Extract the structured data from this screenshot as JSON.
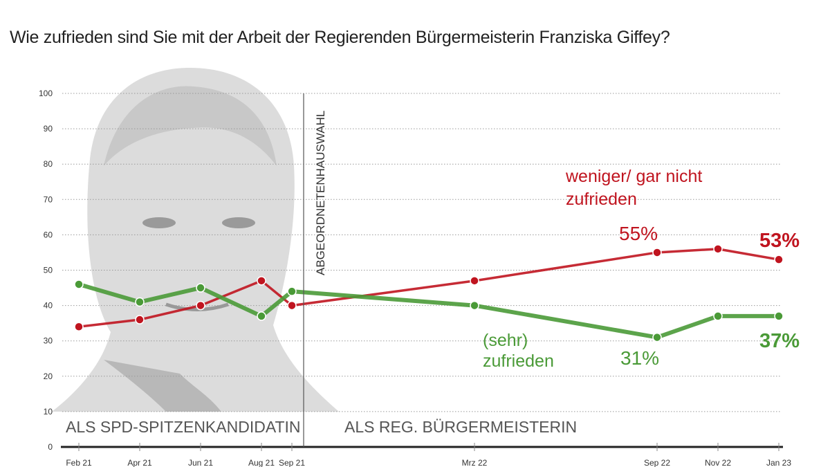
{
  "subtitle": "Wie zufrieden sind Sie mit der Arbeit der Regierenden Bürgermeisterin Franziska Giffey?",
  "colors": {
    "red": "#c0141f",
    "green": "#4a9a37",
    "photo": "#d8d8d8"
  },
  "chart_data": {
    "type": "line",
    "categories": [
      "Feb 21",
      "Apr 21",
      "Jun 21",
      "Aug 21",
      "Sep 21",
      "Mrz 22",
      "Sep 22",
      "Nov 22",
      "Jan 23"
    ],
    "month_index": [
      0,
      2,
      4,
      6,
      7,
      13,
      19,
      21,
      23
    ],
    "ylim": [
      0,
      100
    ],
    "yticks": [
      0,
      10,
      20,
      30,
      40,
      50,
      60,
      70,
      80,
      90,
      100
    ],
    "grid": true,
    "series": [
      {
        "name": "weniger/ gar nicht zufrieden",
        "name_lines": [
          "weniger/ gar nicht",
          "zufrieden"
        ],
        "color": "#c0141f",
        "values": [
          34,
          36,
          40,
          47,
          40,
          47,
          55,
          56,
          53
        ]
      },
      {
        "name": "(sehr) zufrieden",
        "name_lines": [
          "(sehr)",
          "zufrieden"
        ],
        "color": "#4a9a37",
        "values": [
          46,
          41,
          45,
          37,
          44,
          40,
          31,
          37,
          37
        ]
      }
    ],
    "annotations": {
      "event": "ABGEORDNETENHAUSWAHL",
      "period_left": "ALS SPD-SPITZENKANDIDATIN",
      "period_right": "ALS REG. BÜRGERMEISTERIN",
      "red_sep22": "55%",
      "red_last": "53%",
      "green_sep22": "31%",
      "green_last": "37%"
    }
  }
}
